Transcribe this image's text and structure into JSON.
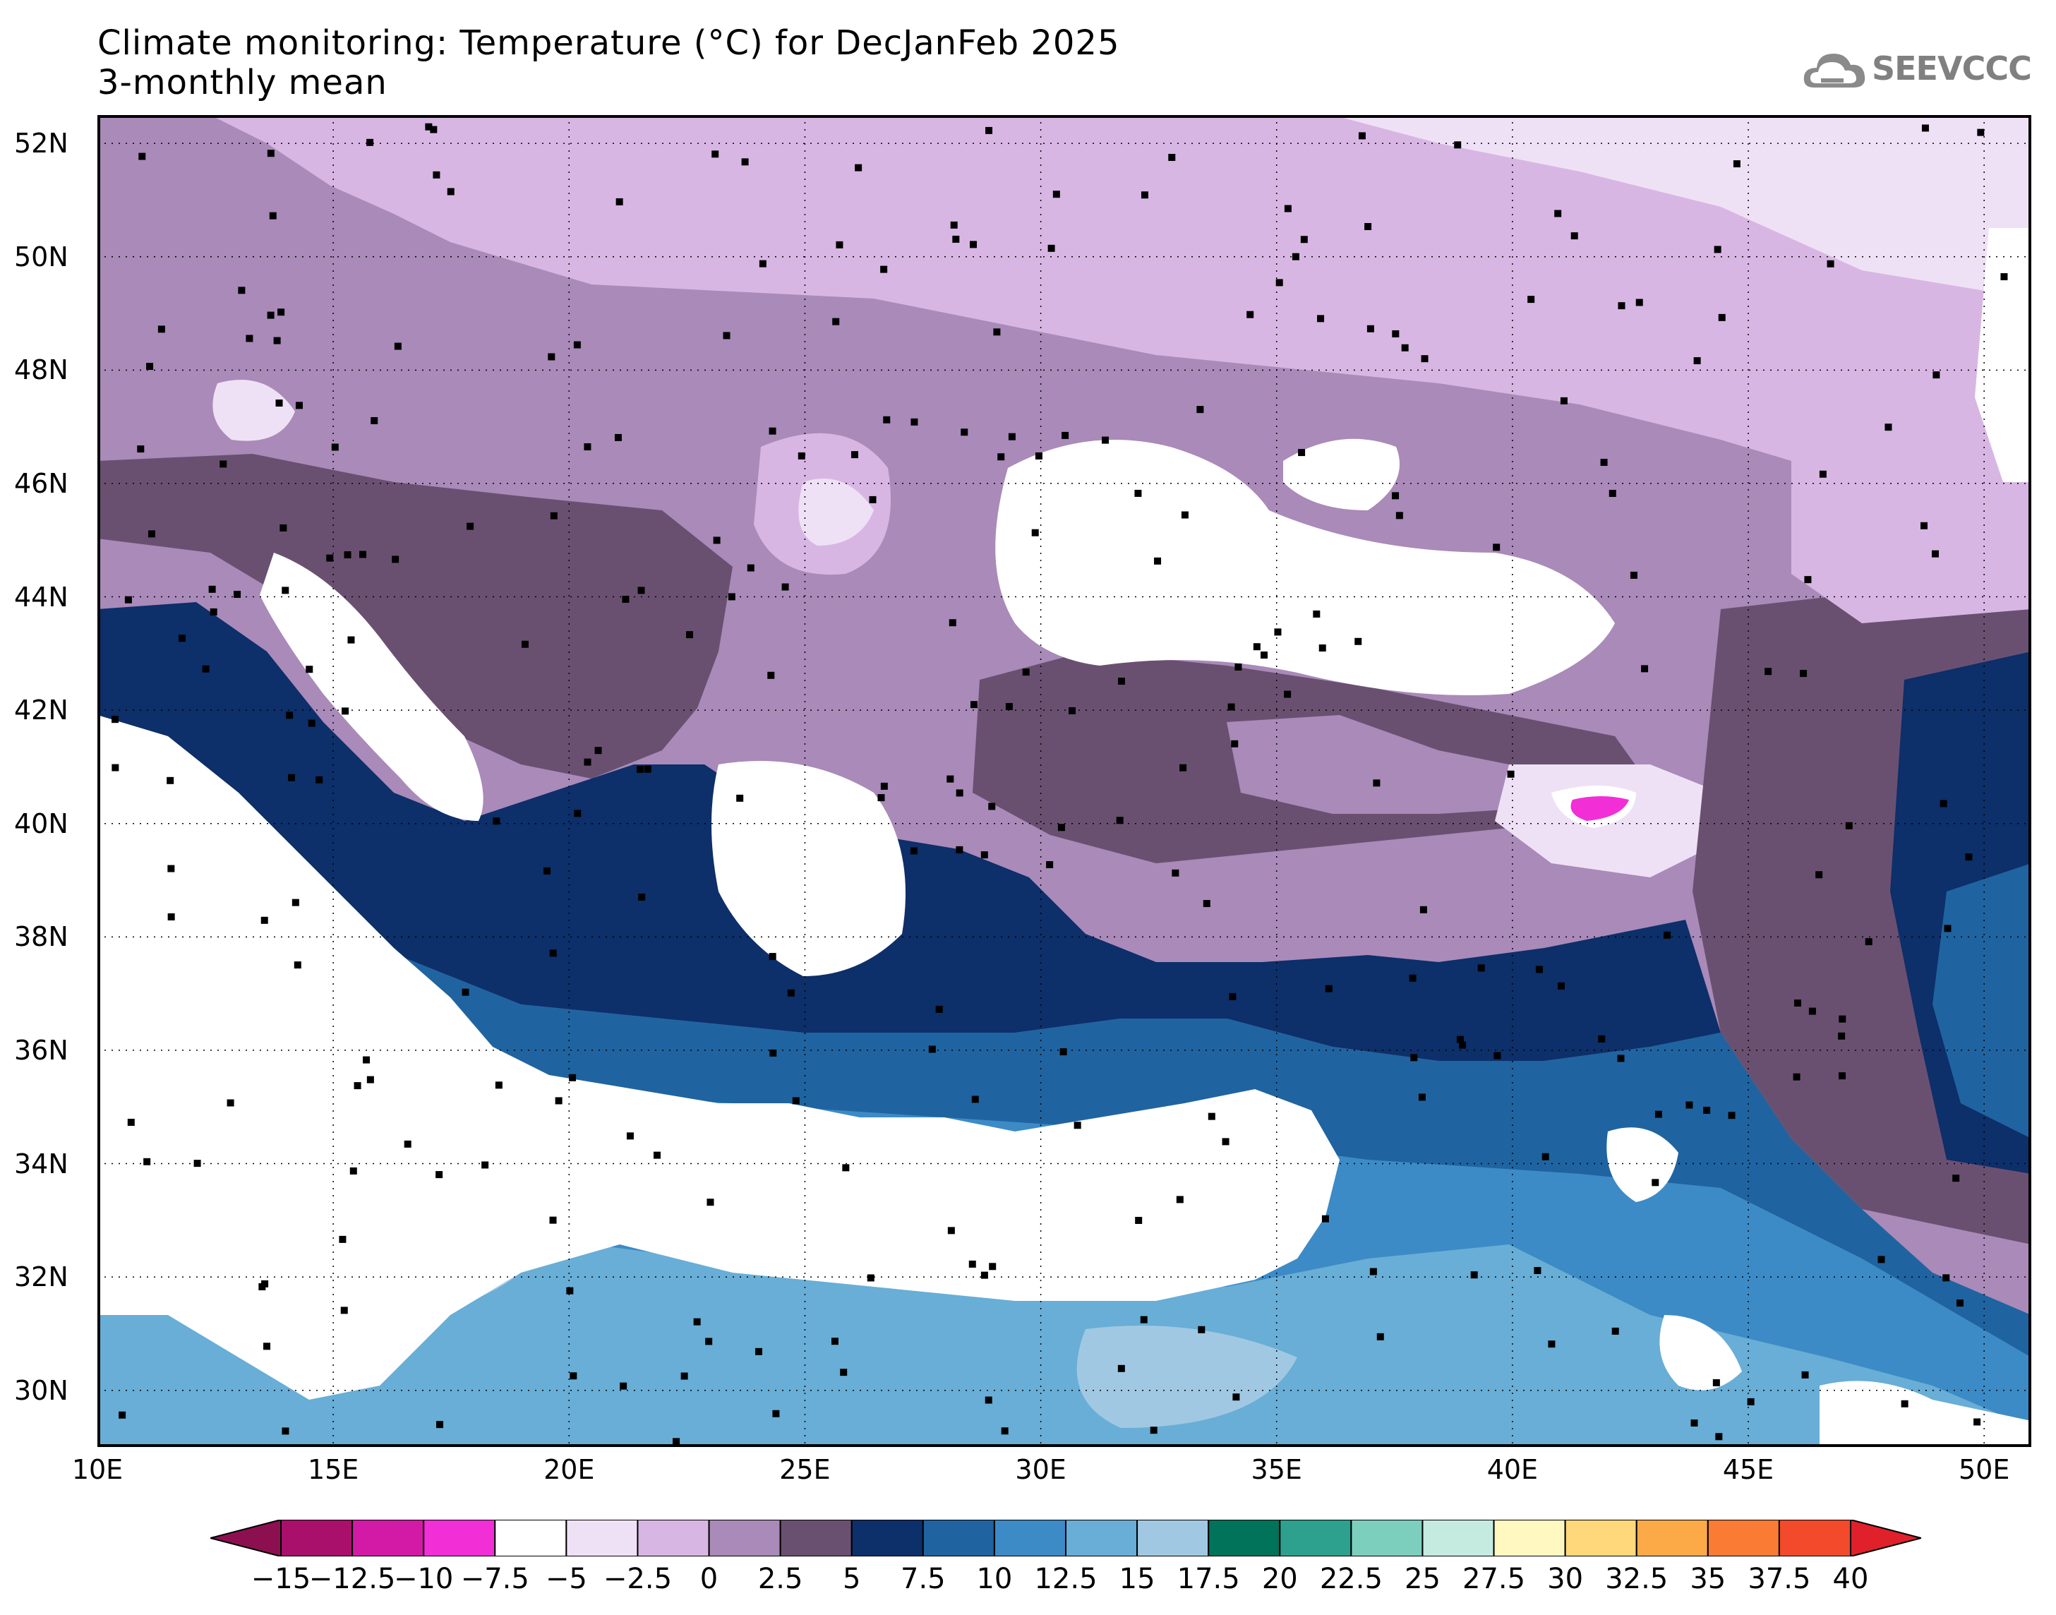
{
  "title": {
    "line1": "Climate monitoring: Temperature (°C) for DecJanFeb 2025",
    "line2": "3-monthly mean"
  },
  "logo": {
    "text": "SEEVCCC",
    "icon": "cloud-icon"
  },
  "map": {
    "lat_range": [
      29,
      52.5
    ],
    "lon_range": [
      10,
      51
    ],
    "lat_labels": [
      "52N",
      "50N",
      "48N",
      "46N",
      "44N",
      "42N",
      "40N",
      "38N",
      "36N",
      "34N",
      "32N",
      "30N"
    ],
    "lat_values": [
      52,
      50,
      48,
      46,
      44,
      42,
      40,
      38,
      36,
      34,
      32,
      30
    ],
    "lon_labels": [
      "10E",
      "15E",
      "20E",
      "25E",
      "30E",
      "35E",
      "40E",
      "45E",
      "50E"
    ],
    "lon_values": [
      10,
      15,
      20,
      25,
      30,
      35,
      40,
      45,
      50
    ]
  },
  "colorbar": {
    "labels": [
      "−15",
      "−12.5",
      "−10",
      "−7.5",
      "−5",
      "−2.5",
      "0",
      "2.5",
      "5",
      "7.5",
      "10",
      "12.5",
      "15",
      "17.5",
      "20",
      "22.5",
      "25",
      "27.5",
      "30",
      "32.5",
      "35",
      "37.5",
      "40"
    ],
    "colors": [
      "#8c1050",
      "#a8106c",
      "#d21aa6",
      "#f22ed6",
      "#ffffff",
      "#efe1f5",
      "#d8b6e3",
      "#a98ab9",
      "#6a5070",
      "#0d2f6a",
      "#1f64a0",
      "#3c8bc6",
      "#68aed6",
      "#a1c8e2",
      "#00735a",
      "#2ea08e",
      "#7ccfbd",
      "#c5ebe1",
      "#fff8c0",
      "#fed87a",
      "#fcaa47",
      "#fa7b34",
      "#f24a2a",
      "#e0202a"
    ]
  }
}
